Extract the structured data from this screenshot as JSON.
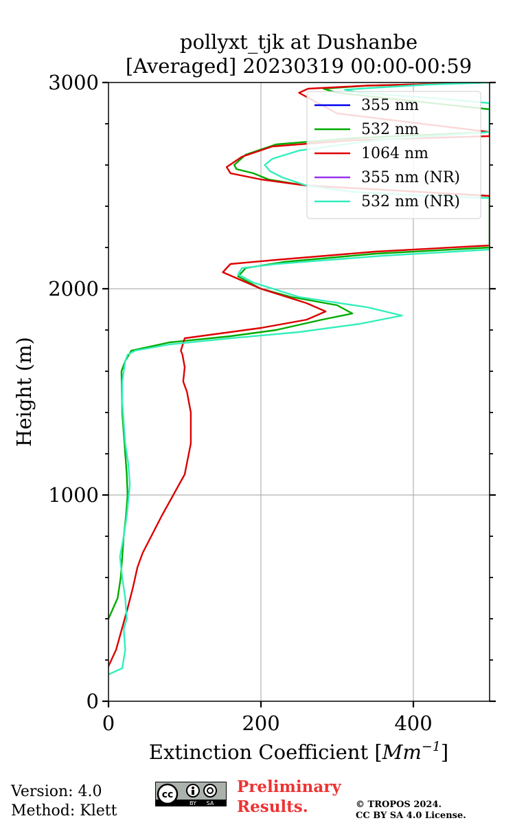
{
  "chart_data": {
    "type": "line",
    "title_line1": "pollyxt_tjk at Dushanbe",
    "title_line2": "[Averaged] 20230319 00:00-00:59",
    "xlabel": "Extinction Coefficient [$Mm^{-1}$]",
    "xlabel_main": "Extinction Coefficient [",
    "xlabel_unit": "Mm",
    "xlabel_exp": "−1",
    "xlabel_close": "]",
    "ylabel": "Height (m)",
    "xlim": [
      0,
      500
    ],
    "ylim": [
      0,
      3000
    ],
    "xticks": [
      0,
      200,
      400
    ],
    "xtick_labels": [
      "0",
      "200",
      "400"
    ],
    "yticks": [
      0,
      1000,
      2000,
      3000
    ],
    "ytick_labels": [
      "0",
      "1000",
      "2000",
      "3000"
    ],
    "grid": true,
    "legend_position": "top-right",
    "series": [
      {
        "name": "355 nm",
        "color": "#0000ee",
        "x": [],
        "y": []
      },
      {
        "name": "532 nm",
        "color": "#00aa00",
        "x": [
          0,
          12,
          16,
          18,
          20,
          23,
          25,
          24,
          22,
          18,
          17,
          22,
          30,
          80,
          160,
          220,
          280,
          320,
          300,
          240,
          200,
          170,
          180,
          230,
          350,
          500,
          500,
          360,
          260,
          210,
          190,
          168,
          165,
          180,
          220,
          320,
          500,
          500,
          300,
          282,
          340,
          500
        ],
        "y": [
          400,
          500,
          600,
          700,
          800,
          900,
          1000,
          1100,
          1200,
          1400,
          1600,
          1650,
          1700,
          1740,
          1770,
          1800,
          1850,
          1880,
          1920,
          1960,
          2000,
          2060,
          2100,
          2130,
          2170,
          2200,
          2450,
          2480,
          2500,
          2530,
          2560,
          2580,
          2600,
          2650,
          2700,
          2730,
          2760,
          2870,
          2950,
          2970,
          2985,
          3000
        ]
      },
      {
        "name": "1064 nm",
        "color": "#dd0000",
        "x": [
          0,
          10,
          25,
          32,
          38,
          45,
          70,
          100,
          108,
          108,
          103,
          98,
          100,
          97,
          95,
          100,
          200,
          260,
          285,
          260,
          200,
          150,
          160,
          220,
          350,
          500,
          500,
          360,
          260,
          200,
          160,
          155,
          175,
          215,
          320,
          500,
          500,
          300,
          250,
          262,
          340,
          500
        ],
        "y": [
          170,
          250,
          450,
          550,
          650,
          720,
          900,
          1100,
          1250,
          1400,
          1500,
          1550,
          1620,
          1680,
          1700,
          1760,
          1810,
          1850,
          1890,
          1930,
          2000,
          2080,
          2120,
          2140,
          2180,
          2210,
          2450,
          2480,
          2500,
          2530,
          2560,
          2590,
          2640,
          2690,
          2720,
          2740,
          2760,
          2850,
          2950,
          2970,
          2985,
          3000
        ]
      },
      {
        "name": "355 nm (NR)",
        "color": "#9933ee",
        "x": [],
        "y": []
      },
      {
        "name": "532 nm (NR)",
        "color": "#33eebb",
        "x": [
          0,
          18,
          22,
          20,
          24,
          22,
          18,
          15,
          20,
          24,
          28,
          26,
          22,
          20,
          18,
          18,
          22,
          25,
          35,
          80,
          160,
          250,
          330,
          385,
          340,
          250,
          190,
          170,
          175,
          220,
          360,
          500,
          500,
          420,
          320,
          260,
          228,
          212,
          205,
          215,
          250,
          350,
          500,
          500,
          440,
          330,
          310,
          350,
          420,
          500
        ],
        "y": [
          130,
          160,
          250,
          350,
          400,
          500,
          600,
          700,
          800,
          900,
          1050,
          1150,
          1250,
          1350,
          1450,
          1550,
          1650,
          1680,
          1700,
          1730,
          1760,
          1790,
          1830,
          1870,
          1910,
          1960,
          2030,
          2070,
          2100,
          2120,
          2160,
          2190,
          2440,
          2450,
          2470,
          2500,
          2540,
          2570,
          2600,
          2630,
          2670,
          2720,
          2760,
          2900,
          2920,
          2950,
          2965,
          2975,
          2990,
          3000
        ]
      }
    ]
  },
  "footer": {
    "version": "Version: 4.0",
    "method": "Method: Klett",
    "license_badge_top": "cc",
    "license_badge_by": "BY",
    "license_badge_sa": "SA",
    "preliminary_line1": "Preliminary",
    "preliminary_line2": "Results.",
    "copyright_line1": "© TROPOS 2024.",
    "copyright_line2": "CC BY SA 4.0 License.",
    "preliminary_color": "#ee3333"
  }
}
